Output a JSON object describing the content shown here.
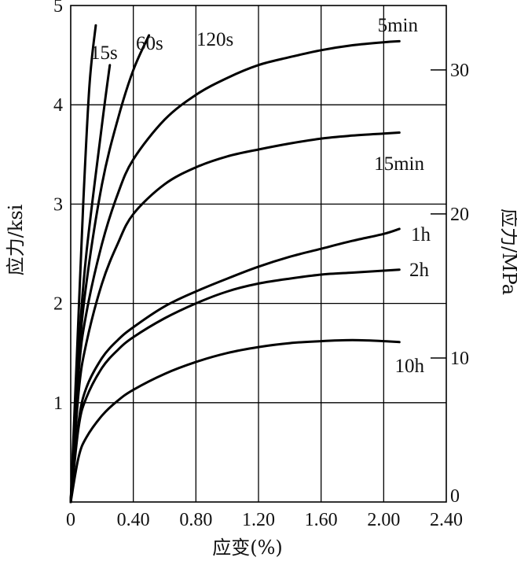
{
  "chart_data": {
    "type": "line",
    "xlabel": "应变(%)",
    "ylabel": "应力/ksi",
    "y2label": "应力/MPa",
    "xlim": [
      0,
      2.4
    ],
    "ylim": [
      0,
      5
    ],
    "y2lim": [
      0,
      34.47
    ],
    "grid": true,
    "x_ticks": [
      {
        "value": 0,
        "label": "0"
      },
      {
        "value": 0.4,
        "label": "0.40"
      },
      {
        "value": 0.8,
        "label": "0.80"
      },
      {
        "value": 1.2,
        "label": "1.20"
      },
      {
        "value": 1.6,
        "label": "1.60"
      },
      {
        "value": 2.0,
        "label": "2.00"
      },
      {
        "value": 2.4,
        "label": "2.40"
      }
    ],
    "y_ticks": [
      {
        "value": 1,
        "label": "1"
      },
      {
        "value": 2,
        "label": "2"
      },
      {
        "value": 3,
        "label": "3"
      },
      {
        "value": 4,
        "label": "4"
      },
      {
        "value": 5,
        "label": "5"
      }
    ],
    "y2_ticks": [
      {
        "value": 0,
        "label": "0"
      },
      {
        "value": 10,
        "label": "10"
      },
      {
        "value": 20,
        "label": "20"
      },
      {
        "value": 30,
        "label": "30"
      }
    ],
    "series": [
      {
        "name": "15s",
        "x": [
          0,
          0.04,
          0.08,
          0.12,
          0.16
        ],
        "y": [
          0,
          1.5,
          3.0,
          4.2,
          4.8
        ]
      },
      {
        "name": "60s",
        "x": [
          0,
          0.05,
          0.1,
          0.2,
          0.25
        ],
        "y": [
          0,
          1.5,
          2.5,
          3.8,
          4.4
        ]
      },
      {
        "name": "120s",
        "x": [
          0,
          0.05,
          0.1,
          0.2,
          0.3,
          0.4,
          0.5
        ],
        "y": [
          0,
          1.4,
          2.2,
          3.2,
          3.85,
          4.35,
          4.7
        ]
      },
      {
        "name": "5min",
        "x": [
          0,
          0.05,
          0.1,
          0.2,
          0.3,
          0.4,
          0.6,
          0.8,
          1.0,
          1.2,
          1.4,
          1.6,
          1.8,
          2.0,
          2.1
        ],
        "y": [
          0,
          1.3,
          1.9,
          2.6,
          3.1,
          3.45,
          3.85,
          4.1,
          4.27,
          4.4,
          4.48,
          4.55,
          4.6,
          4.63,
          4.64
        ]
      },
      {
        "name": "15min",
        "x": [
          0,
          0.05,
          0.1,
          0.2,
          0.3,
          0.4,
          0.6,
          0.8,
          1.0,
          1.2,
          1.4,
          1.6,
          1.8,
          2.0,
          2.1
        ],
        "y": [
          0,
          1.1,
          1.6,
          2.2,
          2.6,
          2.9,
          3.2,
          3.37,
          3.48,
          3.55,
          3.61,
          3.66,
          3.69,
          3.71,
          3.72
        ]
      },
      {
        "name": "1h",
        "x": [
          0,
          0.05,
          0.1,
          0.2,
          0.3,
          0.4,
          0.6,
          0.8,
          1.0,
          1.2,
          1.4,
          1.6,
          1.8,
          2.0,
          2.1
        ],
        "y": [
          0,
          0.8,
          1.15,
          1.45,
          1.63,
          1.76,
          1.97,
          2.12,
          2.25,
          2.37,
          2.47,
          2.55,
          2.63,
          2.7,
          2.75
        ]
      },
      {
        "name": "2h",
        "x": [
          0,
          0.05,
          0.1,
          0.2,
          0.3,
          0.4,
          0.6,
          0.8,
          1.0,
          1.2,
          1.4,
          1.6,
          1.8,
          2.0,
          2.1
        ],
        "y": [
          0,
          0.75,
          1.05,
          1.35,
          1.53,
          1.66,
          1.85,
          2.0,
          2.12,
          2.2,
          2.25,
          2.29,
          2.31,
          2.33,
          2.34
        ]
      },
      {
        "name": "10h",
        "x": [
          0,
          0.05,
          0.1,
          0.2,
          0.3,
          0.4,
          0.6,
          0.8,
          1.0,
          1.2,
          1.4,
          1.6,
          1.8,
          2.0,
          2.1
        ],
        "y": [
          0,
          0.45,
          0.65,
          0.87,
          1.02,
          1.13,
          1.29,
          1.41,
          1.5,
          1.56,
          1.6,
          1.62,
          1.63,
          1.62,
          1.61
        ]
      }
    ]
  }
}
